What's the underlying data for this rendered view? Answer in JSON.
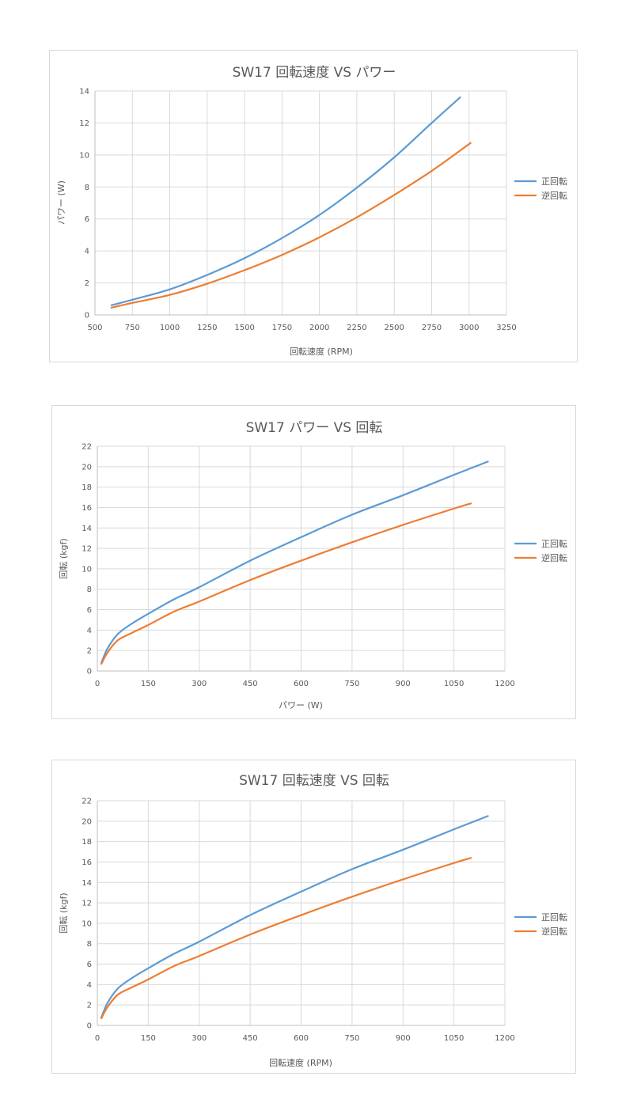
{
  "chart_data": [
    {
      "type": "line",
      "title": "SW17 回転速度 VS パワー",
      "xlabel": "回転速度 (RPM)",
      "ylabel": "パワー (W)",
      "xlim": [
        500,
        3250
      ],
      "ylim": [
        0,
        14
      ],
      "xticks": [
        500,
        750,
        1000,
        1250,
        1500,
        1750,
        2000,
        2250,
        2500,
        2750,
        3000,
        3250
      ],
      "yticks": [
        0,
        2,
        4,
        6,
        8,
        10,
        12,
        14
      ],
      "grid": true,
      "legend": "right",
      "series": [
        {
          "name": "正回転",
          "color": "#5b9bd5",
          "x": [
            610,
            750,
            1000,
            1250,
            1500,
            1750,
            2000,
            2250,
            2500,
            2750,
            2940
          ],
          "y": [
            0.6,
            0.95,
            1.6,
            2.5,
            3.55,
            4.8,
            6.25,
            7.95,
            9.85,
            12.0,
            13.6
          ]
        },
        {
          "name": "逆回転",
          "color": "#ed7d31",
          "x": [
            610,
            750,
            1000,
            1250,
            1500,
            1750,
            2000,
            2250,
            2500,
            2750,
            3010
          ],
          "y": [
            0.45,
            0.75,
            1.25,
            1.95,
            2.8,
            3.75,
            4.85,
            6.1,
            7.5,
            9.0,
            10.75
          ]
        }
      ]
    },
    {
      "type": "line",
      "title": "SW17 パワー VS 回転",
      "xlabel": "パワー (W)",
      "ylabel": "回転 (kgf)",
      "xlim": [
        0,
        1200
      ],
      "ylim": [
        0,
        22
      ],
      "xticks": [
        0,
        150,
        300,
        450,
        600,
        750,
        900,
        1050,
        1200
      ],
      "yticks": [
        0,
        2,
        4,
        6,
        8,
        10,
        12,
        14,
        16,
        18,
        20,
        22
      ],
      "grid": true,
      "legend": "right",
      "series": [
        {
          "name": "正回転",
          "color": "#5b9bd5",
          "x": [
            12,
            30,
            60,
            100,
            150,
            225,
            300,
            450,
            600,
            750,
            900,
            1050,
            1150
          ],
          "y": [
            0.8,
            2.2,
            3.6,
            4.6,
            5.6,
            7.0,
            8.2,
            10.8,
            13.1,
            15.3,
            17.2,
            19.2,
            20.5
          ]
        },
        {
          "name": "逆回転",
          "color": "#ed7d31",
          "x": [
            12,
            30,
            60,
            100,
            150,
            225,
            300,
            450,
            600,
            750,
            900,
            1050,
            1100
          ],
          "y": [
            0.7,
            1.8,
            3.0,
            3.7,
            4.5,
            5.8,
            6.8,
            8.9,
            10.8,
            12.6,
            14.3,
            15.9,
            16.4
          ]
        }
      ]
    },
    {
      "type": "line",
      "title": "SW17 回転速度 VS 回転",
      "xlabel": "回転速度 (RPM)",
      "ylabel": "回転 (kgf)",
      "xlim": [
        0,
        1200
      ],
      "ylim": [
        0,
        22
      ],
      "xticks": [
        0,
        150,
        300,
        450,
        600,
        750,
        900,
        1050,
        1200
      ],
      "yticks": [
        0,
        2,
        4,
        6,
        8,
        10,
        12,
        14,
        16,
        18,
        20,
        22
      ],
      "grid": true,
      "legend": "right",
      "series": [
        {
          "name": "正回転",
          "color": "#5b9bd5",
          "x": [
            12,
            30,
            60,
            100,
            150,
            225,
            300,
            450,
            600,
            750,
            900,
            1050,
            1150
          ],
          "y": [
            0.8,
            2.2,
            3.6,
            4.6,
            5.6,
            7.0,
            8.2,
            10.8,
            13.1,
            15.3,
            17.2,
            19.2,
            20.5
          ]
        },
        {
          "name": "逆回転",
          "color": "#ed7d31",
          "x": [
            12,
            30,
            60,
            100,
            150,
            225,
            300,
            450,
            600,
            750,
            900,
            1050,
            1100
          ],
          "y": [
            0.7,
            1.8,
            3.0,
            3.7,
            4.5,
            5.8,
            6.8,
            8.9,
            10.8,
            12.6,
            14.3,
            15.9,
            16.4
          ]
        }
      ]
    }
  ]
}
